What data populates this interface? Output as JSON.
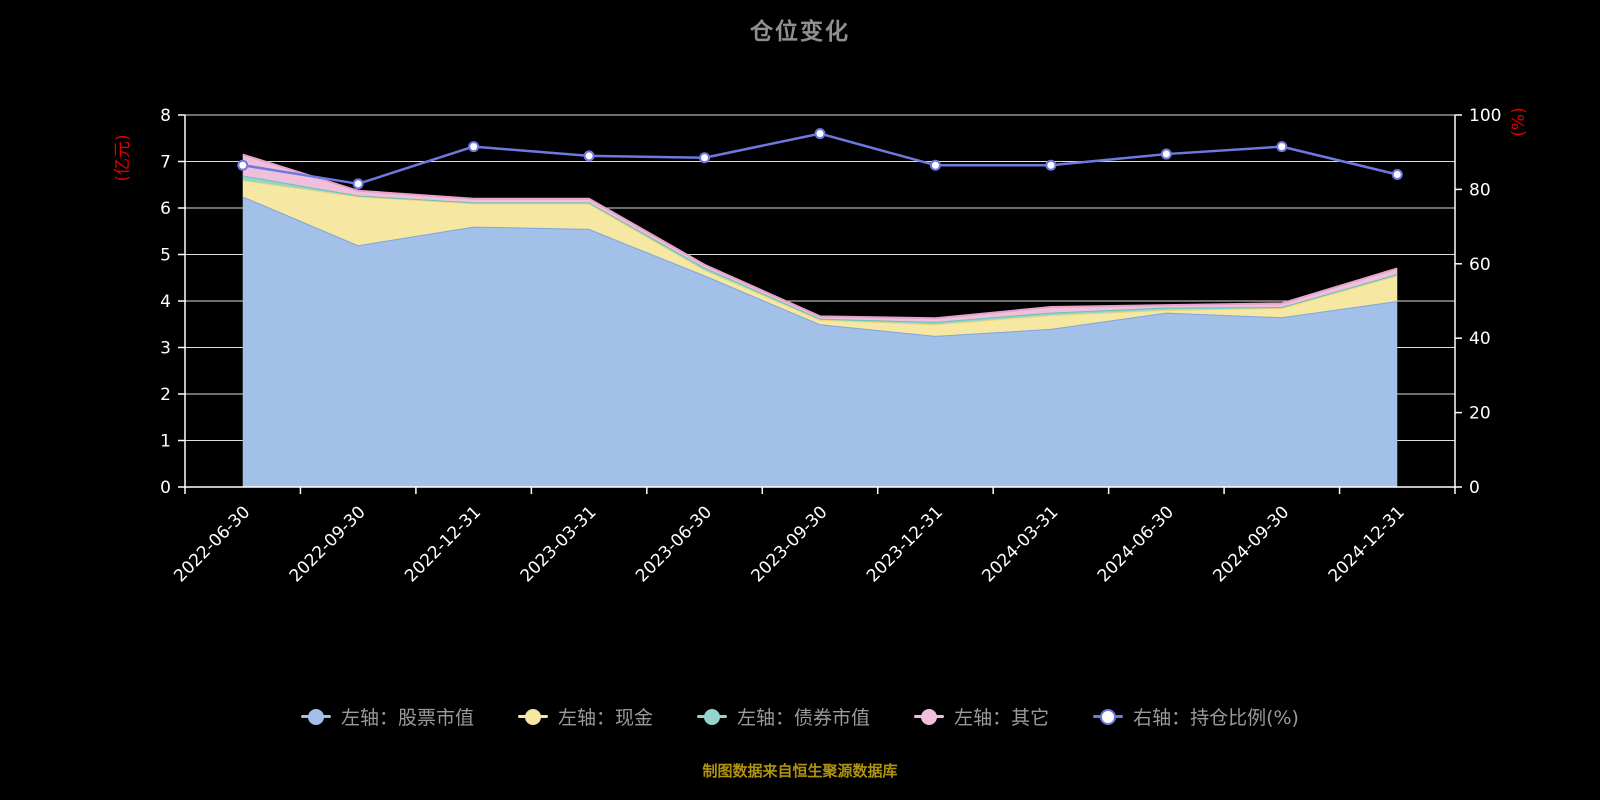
{
  "chart_data": {
    "type": "area",
    "title": "仓位变化",
    "caption": "制图数据来自恒生聚源数据库",
    "categories": [
      "2022-06-30",
      "2022-09-30",
      "2022-12-31",
      "2023-03-31",
      "2023-06-30",
      "2023-09-30",
      "2023-12-31",
      "2024-03-31",
      "2024-06-30",
      "2024-09-30",
      "2024-12-31"
    ],
    "series": [
      {
        "name": "左轴：股票市值",
        "type": "area",
        "axis": "left",
        "color": "#a3c0e8",
        "line_color": "#7ea6dd",
        "values": [
          6.25,
          5.2,
          5.6,
          5.55,
          4.55,
          3.5,
          3.25,
          3.4,
          3.75,
          3.65,
          4.0
        ]
      },
      {
        "name": "左轴：现金",
        "type": "area",
        "axis": "left",
        "color": "#f6e7a2",
        "line_color": "#e9d47c",
        "values": [
          0.35,
          1.05,
          0.5,
          0.55,
          0.12,
          0.1,
          0.25,
          0.3,
          0.06,
          0.2,
          0.55
        ]
      },
      {
        "name": "左轴：债券市值",
        "type": "area",
        "axis": "left",
        "color": "#93d5cc",
        "line_color": "#66c3b8",
        "values": [
          0.1,
          0.02,
          0.02,
          0.02,
          0.05,
          0.02,
          0.05,
          0.05,
          0.05,
          0.02,
          0.03
        ]
      },
      {
        "name": "左轴：其它",
        "type": "area",
        "axis": "left",
        "color": "#f0bfdb",
        "line_color": "#e5a3ca",
        "values": [
          0.45,
          0.1,
          0.08,
          0.08,
          0.06,
          0.05,
          0.08,
          0.12,
          0.05,
          0.08,
          0.12
        ]
      },
      {
        "name": "右轴：持仓比例(%)",
        "type": "line",
        "axis": "right",
        "color": "#6e79e0",
        "line_color": "#6e79e0",
        "values": [
          86.5,
          81.5,
          91.5,
          89,
          88.5,
          95,
          86.5,
          86.5,
          89.5,
          91.5,
          84
        ]
      }
    ],
    "left_axis": {
      "label": "(亿元)",
      "min": 0,
      "max": 8,
      "tick": 1,
      "label_color": "#e00000",
      "tick_color": "#ffffff"
    },
    "right_axis": {
      "label": "(%)",
      "min": 0,
      "max": 100,
      "tick": 20,
      "label_color": "#e00000",
      "tick_color": "#ffffff"
    },
    "grid": true,
    "legend_position": "bottom",
    "background_color": "#000000"
  },
  "legend": {
    "items": [
      {
        "label": "左轴：股票市值",
        "color": "#a3c0e8",
        "fill": "#a3c0e8"
      },
      {
        "label": "左轴：现金",
        "color": "#f6e7a2",
        "fill": "#f6e7a2"
      },
      {
        "label": "左轴：债券市值",
        "color": "#93d5cc",
        "fill": "#93d5cc"
      },
      {
        "label": "左轴：其它",
        "color": "#f0bfdb",
        "fill": "#f0bfdb"
      },
      {
        "label": "右轴：持仓比例(%)",
        "color": "#6e79e0",
        "fill": "#ffffff"
      }
    ]
  }
}
